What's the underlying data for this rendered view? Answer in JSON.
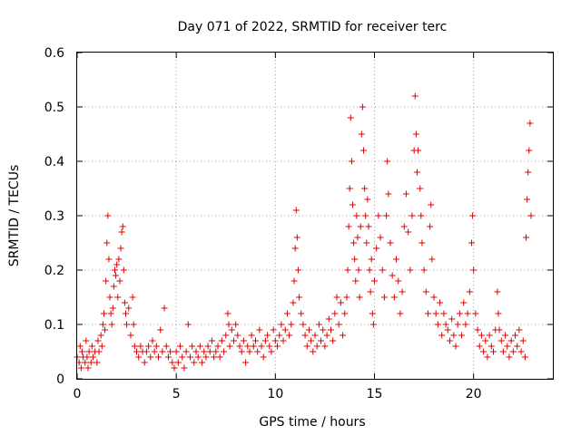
{
  "chart_data": {
    "type": "scatter",
    "title": "Day 071 of 2022, SRMTID for receiver terc",
    "xlabel": "GPS time / hours",
    "ylabel": "SRMTID / TECUs",
    "xlim": [
      0,
      24
    ],
    "ylim": [
      0,
      0.6
    ],
    "xticks": [
      "0",
      "5",
      "10",
      "15",
      "20"
    ],
    "yticks": [
      "0",
      "0.1",
      "0.2",
      "0.3",
      "0.4",
      "0.5",
      "0.6"
    ],
    "grid": true,
    "marker": "+",
    "color": "#e00000",
    "series": [
      {
        "name": "SRMTID",
        "points": [
          [
            0.0,
            0.04
          ],
          [
            0.1,
            0.03
          ],
          [
            0.15,
            0.06
          ],
          [
            0.2,
            0.02
          ],
          [
            0.25,
            0.05
          ],
          [
            0.3,
            0.04
          ],
          [
            0.4,
            0.03
          ],
          [
            0.45,
            0.07
          ],
          [
            0.5,
            0.04
          ],
          [
            0.55,
            0.02
          ],
          [
            0.6,
            0.05
          ],
          [
            0.7,
            0.03
          ],
          [
            0.75,
            0.06
          ],
          [
            0.8,
            0.04
          ],
          [
            0.9,
            0.05
          ],
          [
            1.0,
            0.03
          ],
          [
            1.05,
            0.07
          ],
          [
            1.1,
            0.05
          ],
          [
            1.2,
            0.08
          ],
          [
            1.25,
            0.06
          ],
          [
            1.3,
            0.1
          ],
          [
            1.35,
            0.12
          ],
          [
            1.4,
            0.09
          ],
          [
            1.45,
            0.18
          ],
          [
            1.5,
            0.25
          ],
          [
            1.55,
            0.3
          ],
          [
            1.6,
            0.22
          ],
          [
            1.65,
            0.15
          ],
          [
            1.7,
            0.12
          ],
          [
            1.75,
            0.1
          ],
          [
            1.8,
            0.13
          ],
          [
            1.85,
            0.17
          ],
          [
            1.9,
            0.2
          ],
          [
            1.95,
            0.19
          ],
          [
            2.0,
            0.21
          ],
          [
            2.05,
            0.15
          ],
          [
            2.1,
            0.22
          ],
          [
            2.15,
            0.18
          ],
          [
            2.2,
            0.24
          ],
          [
            2.25,
            0.27
          ],
          [
            2.3,
            0.28
          ],
          [
            2.35,
            0.2
          ],
          [
            2.4,
            0.14
          ],
          [
            2.45,
            0.12
          ],
          [
            2.5,
            0.1
          ],
          [
            2.6,
            0.13
          ],
          [
            2.7,
            0.08
          ],
          [
            2.8,
            0.15
          ],
          [
            2.85,
            0.1
          ],
          [
            2.9,
            0.06
          ],
          [
            3.0,
            0.05
          ],
          [
            3.1,
            0.04
          ],
          [
            3.2,
            0.06
          ],
          [
            3.3,
            0.05
          ],
          [
            3.4,
            0.03
          ],
          [
            3.5,
            0.05
          ],
          [
            3.6,
            0.06
          ],
          [
            3.7,
            0.04
          ],
          [
            3.8,
            0.07
          ],
          [
            3.9,
            0.05
          ],
          [
            4.0,
            0.06
          ],
          [
            4.1,
            0.04
          ],
          [
            4.2,
            0.09
          ],
          [
            4.3,
            0.05
          ],
          [
            4.4,
            0.13
          ],
          [
            4.5,
            0.06
          ],
          [
            4.6,
            0.04
          ],
          [
            4.7,
            0.05
          ],
          [
            4.8,
            0.03
          ],
          [
            4.9,
            0.02
          ],
          [
            5.0,
            0.05
          ],
          [
            5.1,
            0.03
          ],
          [
            5.2,
            0.06
          ],
          [
            5.3,
            0.04
          ],
          [
            5.4,
            0.02
          ],
          [
            5.5,
            0.05
          ],
          [
            5.6,
            0.1
          ],
          [
            5.7,
            0.04
          ],
          [
            5.8,
            0.06
          ],
          [
            5.9,
            0.03
          ],
          [
            6.0,
            0.05
          ],
          [
            6.1,
            0.04
          ],
          [
            6.2,
            0.06
          ],
          [
            6.3,
            0.03
          ],
          [
            6.4,
            0.05
          ],
          [
            6.5,
            0.04
          ],
          [
            6.6,
            0.06
          ],
          [
            6.7,
            0.05
          ],
          [
            6.8,
            0.07
          ],
          [
            6.9,
            0.04
          ],
          [
            7.0,
            0.05
          ],
          [
            7.1,
            0.06
          ],
          [
            7.2,
            0.04
          ],
          [
            7.3,
            0.07
          ],
          [
            7.4,
            0.05
          ],
          [
            7.5,
            0.08
          ],
          [
            7.6,
            0.12
          ],
          [
            7.65,
            0.1
          ],
          [
            7.7,
            0.06
          ],
          [
            7.8,
            0.09
          ],
          [
            7.9,
            0.07
          ],
          [
            8.0,
            0.1
          ],
          [
            8.1,
            0.08
          ],
          [
            8.2,
            0.06
          ],
          [
            8.3,
            0.05
          ],
          [
            8.4,
            0.07
          ],
          [
            8.5,
            0.03
          ],
          [
            8.6,
            0.06
          ],
          [
            8.7,
            0.05
          ],
          [
            8.8,
            0.08
          ],
          [
            8.9,
            0.06
          ],
          [
            9.0,
            0.07
          ],
          [
            9.1,
            0.05
          ],
          [
            9.2,
            0.09
          ],
          [
            9.3,
            0.06
          ],
          [
            9.4,
            0.04
          ],
          [
            9.5,
            0.07
          ],
          [
            9.6,
            0.08
          ],
          [
            9.7,
            0.06
          ],
          [
            9.8,
            0.05
          ],
          [
            9.9,
            0.09
          ],
          [
            10.0,
            0.07
          ],
          [
            10.1,
            0.06
          ],
          [
            10.2,
            0.08
          ],
          [
            10.3,
            0.1
          ],
          [
            10.4,
            0.07
          ],
          [
            10.5,
            0.09
          ],
          [
            10.6,
            0.12
          ],
          [
            10.7,
            0.08
          ],
          [
            10.8,
            0.1
          ],
          [
            10.9,
            0.14
          ],
          [
            10.95,
            0.18
          ],
          [
            11.0,
            0.24
          ],
          [
            11.05,
            0.31
          ],
          [
            11.1,
            0.26
          ],
          [
            11.15,
            0.2
          ],
          [
            11.2,
            0.15
          ],
          [
            11.3,
            0.12
          ],
          [
            11.4,
            0.1
          ],
          [
            11.5,
            0.08
          ],
          [
            11.6,
            0.06
          ],
          [
            11.7,
            0.09
          ],
          [
            11.8,
            0.07
          ],
          [
            11.9,
            0.05
          ],
          [
            12.0,
            0.08
          ],
          [
            12.1,
            0.06
          ],
          [
            12.2,
            0.1
          ],
          [
            12.3,
            0.07
          ],
          [
            12.4,
            0.09
          ],
          [
            12.5,
            0.06
          ],
          [
            12.6,
            0.08
          ],
          [
            12.7,
            0.11
          ],
          [
            12.8,
            0.09
          ],
          [
            12.9,
            0.07
          ],
          [
            13.0,
            0.12
          ],
          [
            13.1,
            0.15
          ],
          [
            13.2,
            0.1
          ],
          [
            13.3,
            0.14
          ],
          [
            13.4,
            0.08
          ],
          [
            13.5,
            0.12
          ],
          [
            13.6,
            0.15
          ],
          [
            13.65,
            0.2
          ],
          [
            13.7,
            0.28
          ],
          [
            13.75,
            0.35
          ],
          [
            13.8,
            0.48
          ],
          [
            13.85,
            0.4
          ],
          [
            13.9,
            0.32
          ],
          [
            13.95,
            0.25
          ],
          [
            14.0,
            0.22
          ],
          [
            14.05,
            0.18
          ],
          [
            14.1,
            0.3
          ],
          [
            14.15,
            0.26
          ],
          [
            14.2,
            0.2
          ],
          [
            14.25,
            0.15
          ],
          [
            14.3,
            0.28
          ],
          [
            14.35,
            0.45
          ],
          [
            14.4,
            0.5
          ],
          [
            14.45,
            0.42
          ],
          [
            14.5,
            0.35
          ],
          [
            14.55,
            0.3
          ],
          [
            14.6,
            0.25
          ],
          [
            14.65,
            0.33
          ],
          [
            14.7,
            0.28
          ],
          [
            14.75,
            0.2
          ],
          [
            14.8,
            0.16
          ],
          [
            14.85,
            0.22
          ],
          [
            14.9,
            0.12
          ],
          [
            14.95,
            0.1
          ],
          [
            15.0,
            0.18
          ],
          [
            15.1,
            0.24
          ],
          [
            15.2,
            0.3
          ],
          [
            15.3,
            0.26
          ],
          [
            15.4,
            0.2
          ],
          [
            15.5,
            0.15
          ],
          [
            15.6,
            0.3
          ],
          [
            15.65,
            0.4
          ],
          [
            15.7,
            0.34
          ],
          [
            15.8,
            0.25
          ],
          [
            15.9,
            0.19
          ],
          [
            16.0,
            0.15
          ],
          [
            16.1,
            0.22
          ],
          [
            16.2,
            0.18
          ],
          [
            16.3,
            0.12
          ],
          [
            16.4,
            0.16
          ],
          [
            16.5,
            0.28
          ],
          [
            16.6,
            0.34
          ],
          [
            16.7,
            0.27
          ],
          [
            16.8,
            0.2
          ],
          [
            16.9,
            0.3
          ],
          [
            17.0,
            0.42
          ],
          [
            17.05,
            0.52
          ],
          [
            17.1,
            0.45
          ],
          [
            17.15,
            0.38
          ],
          [
            17.2,
            0.42
          ],
          [
            17.3,
            0.35
          ],
          [
            17.35,
            0.3
          ],
          [
            17.4,
            0.25
          ],
          [
            17.5,
            0.2
          ],
          [
            17.6,
            0.16
          ],
          [
            17.7,
            0.12
          ],
          [
            17.8,
            0.28
          ],
          [
            17.85,
            0.32
          ],
          [
            17.9,
            0.22
          ],
          [
            18.0,
            0.15
          ],
          [
            18.1,
            0.12
          ],
          [
            18.2,
            0.1
          ],
          [
            18.3,
            0.14
          ],
          [
            18.4,
            0.08
          ],
          [
            18.5,
            0.12
          ],
          [
            18.6,
            0.1
          ],
          [
            18.7,
            0.09
          ],
          [
            18.8,
            0.07
          ],
          [
            18.9,
            0.11
          ],
          [
            19.0,
            0.08
          ],
          [
            19.1,
            0.06
          ],
          [
            19.2,
            0.1
          ],
          [
            19.3,
            0.12
          ],
          [
            19.4,
            0.08
          ],
          [
            19.5,
            0.14
          ],
          [
            19.6,
            0.1
          ],
          [
            19.7,
            0.12
          ],
          [
            19.8,
            0.16
          ],
          [
            19.9,
            0.25
          ],
          [
            19.95,
            0.3
          ],
          [
            20.0,
            0.2
          ],
          [
            20.1,
            0.12
          ],
          [
            20.2,
            0.09
          ],
          [
            20.3,
            0.06
          ],
          [
            20.4,
            0.08
          ],
          [
            20.5,
            0.05
          ],
          [
            20.6,
            0.07
          ],
          [
            20.7,
            0.04
          ],
          [
            20.8,
            0.08
          ],
          [
            20.9,
            0.06
          ],
          [
            21.0,
            0.05
          ],
          [
            21.1,
            0.09
          ],
          [
            21.2,
            0.16
          ],
          [
            21.25,
            0.12
          ],
          [
            21.3,
            0.09
          ],
          [
            21.4,
            0.07
          ],
          [
            21.5,
            0.05
          ],
          [
            21.6,
            0.08
          ],
          [
            21.7,
            0.06
          ],
          [
            21.8,
            0.04
          ],
          [
            21.9,
            0.07
          ],
          [
            22.0,
            0.05
          ],
          [
            22.1,
            0.08
          ],
          [
            22.2,
            0.06
          ],
          [
            22.3,
            0.09
          ],
          [
            22.4,
            0.05
          ],
          [
            22.5,
            0.07
          ],
          [
            22.6,
            0.04
          ],
          [
            22.65,
            0.26
          ],
          [
            22.7,
            0.33
          ],
          [
            22.75,
            0.38
          ],
          [
            22.8,
            0.42
          ],
          [
            22.85,
            0.47
          ],
          [
            22.9,
            0.3
          ]
        ]
      }
    ]
  }
}
